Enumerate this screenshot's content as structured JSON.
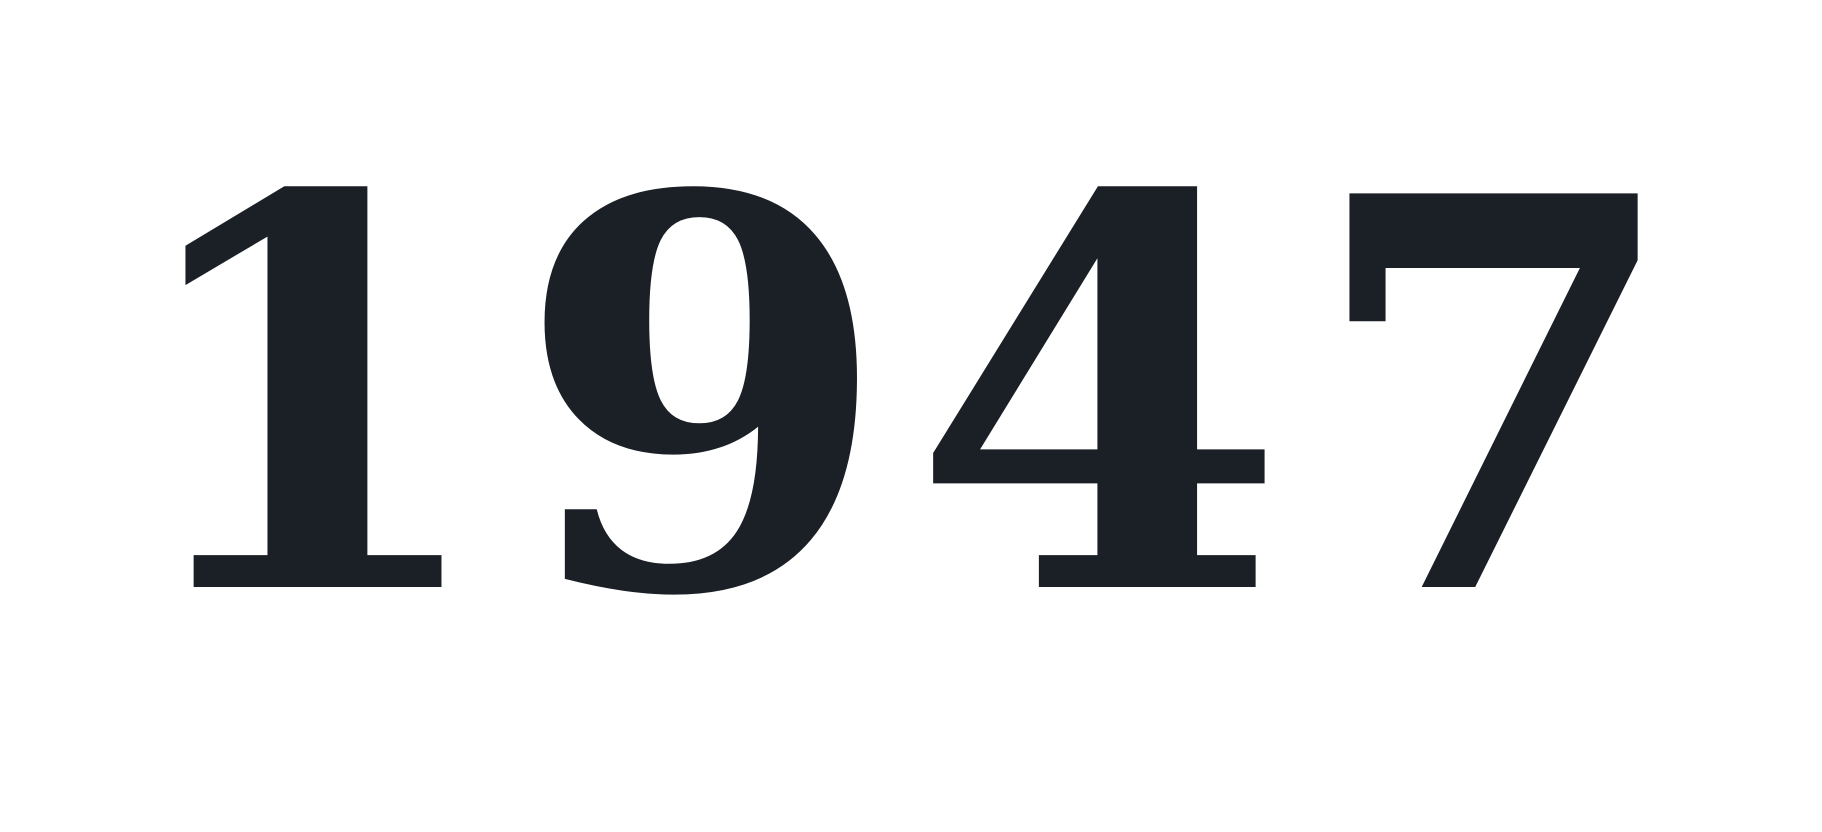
{
  "display": {
    "year": "1947",
    "text_color": "#1b2027",
    "background_color": "#ffffff"
  }
}
